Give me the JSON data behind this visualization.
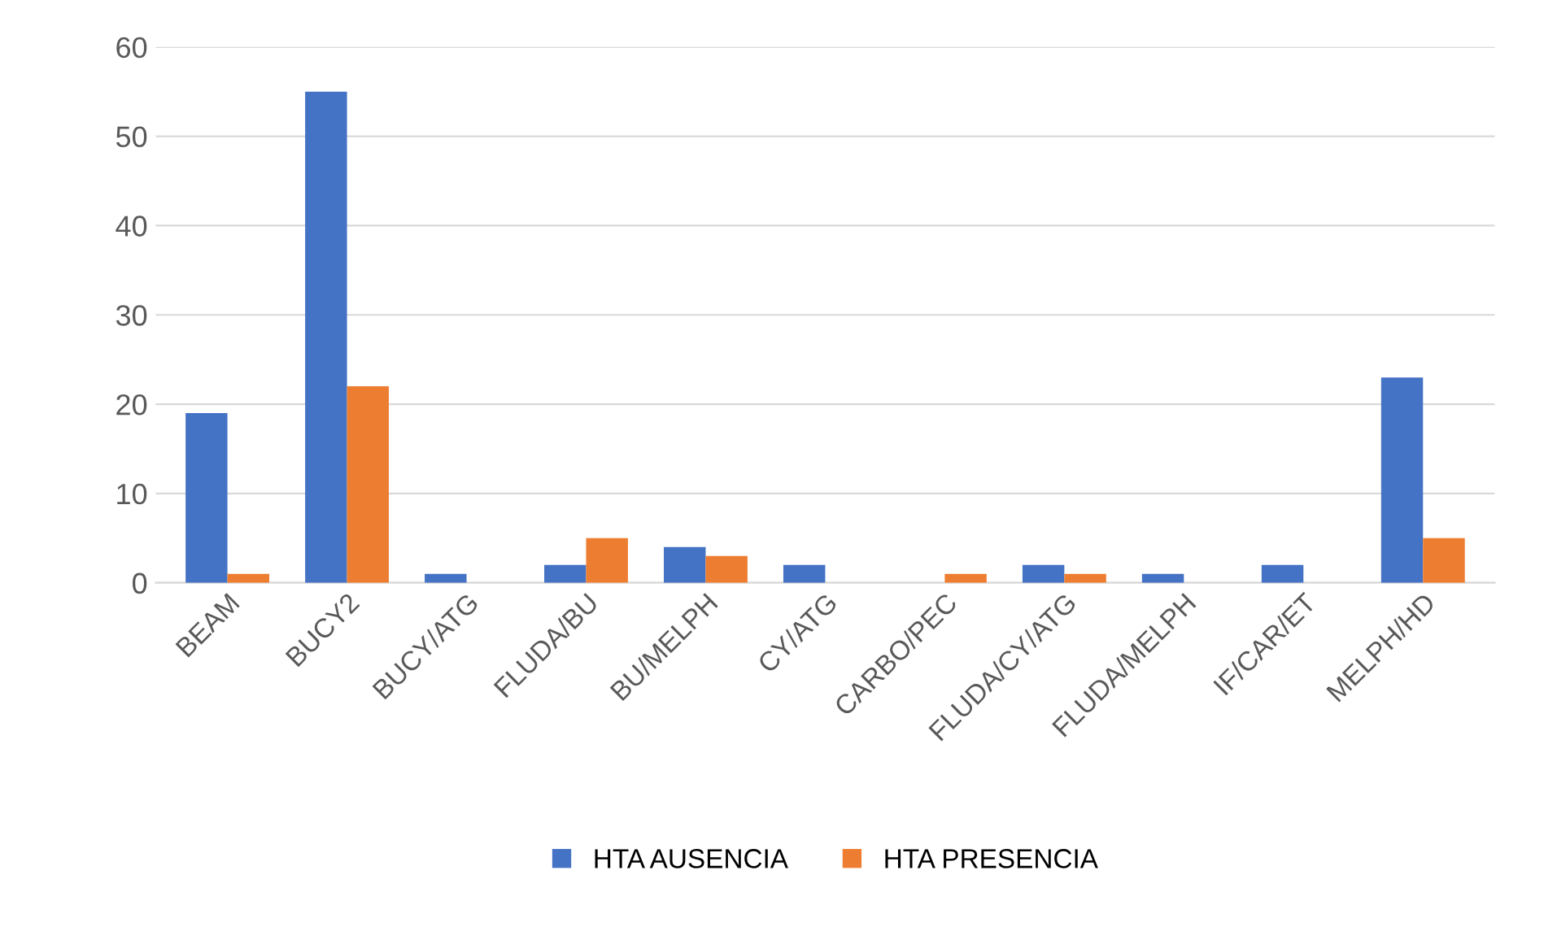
{
  "chart_data": {
    "type": "bar",
    "categories": [
      "BEAM",
      "BUCY2",
      "BUCY/ATG",
      "FLUDA/BU",
      "BU/MELPH",
      "CY/ATG",
      "CARBO/PEC",
      "FLUDA/CY/ATG",
      "FLUDA/MELPH",
      "IF/CAR/ET",
      "MELPH/HD"
    ],
    "series": [
      {
        "name": "HTA AUSENCIA",
        "color": "#4472c4",
        "values": [
          19,
          55,
          1,
          2,
          4,
          2,
          0,
          2,
          1,
          2,
          23
        ]
      },
      {
        "name": "HTA PRESENCIA",
        "color": "#ed7d31",
        "values": [
          1,
          22,
          0,
          5,
          3,
          0,
          1,
          1,
          0,
          0,
          5
        ]
      }
    ],
    "ylim": [
      0,
      60
    ],
    "yticks": [
      0,
      10,
      20,
      30,
      40,
      50,
      60
    ],
    "grid": "y",
    "legend": "bottom"
  }
}
